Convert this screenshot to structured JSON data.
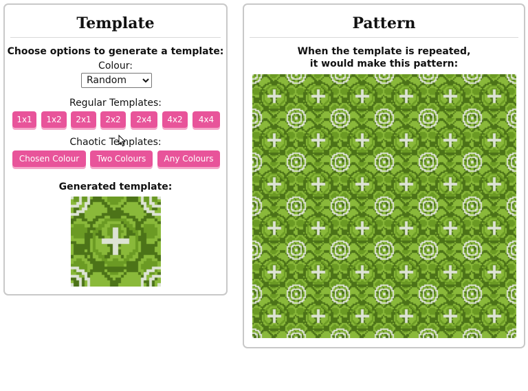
{
  "template_panel": {
    "title": "Template",
    "instructions": "Choose options to generate a template:",
    "colour_label": "Colour:",
    "colour_value": "Random",
    "regular_label": "Regular Templates:",
    "regular_buttons": [
      "1x1",
      "1x2",
      "2x1",
      "2x2",
      "2x4",
      "4x2",
      "4x4"
    ],
    "chaotic_label": "Chaotic Templates:",
    "chaotic_buttons": [
      "Chosen Colour",
      "Two Colours",
      "Any Colours"
    ],
    "generated_label": "Generated template:"
  },
  "pattern_panel": {
    "title": "Pattern",
    "caption_line1": "When the template is repeated,",
    "caption_line2": "it would make this pattern:"
  },
  "colors": {
    "button": "#e8549a",
    "pattern_light": "#8ab93a",
    "pattern_mid": "#6b9a24",
    "pattern_dark": "#4c7318",
    "pattern_white": "#dde3d4"
  },
  "icons": {
    "pointer": "mouse-pointer-icon"
  }
}
